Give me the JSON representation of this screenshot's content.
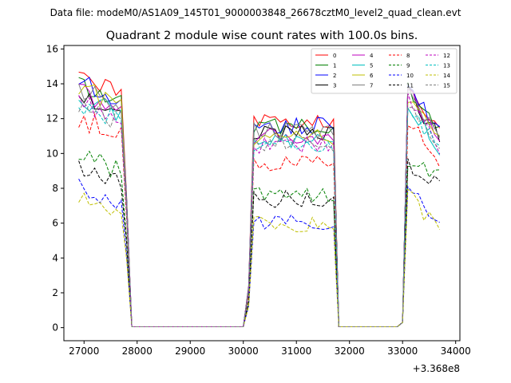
{
  "header": {
    "file_label": "Data file: modeM0/AS1A09_145T01_9000003848_26678cztM0_level2_quad_clean.evt"
  },
  "chart_data": {
    "type": "line",
    "title": "Quadrant 2 module wise count rates with 100.0s bins.",
    "xlabel": "",
    "ylabel": "",
    "x_offset_label": "+3.368e8",
    "xlim": [
      26620,
      34080
    ],
    "ylim": [
      -0.75,
      16.2
    ],
    "xticks": [
      27000,
      28000,
      29000,
      30000,
      31000,
      32000,
      33000,
      34000
    ],
    "xtick_labels": [
      "27000",
      "28000",
      "29000",
      "30000",
      "31000",
      "32000",
      "33000",
      "34000"
    ],
    "yticks": [
      0,
      2,
      4,
      6,
      8,
      10,
      12,
      14,
      16
    ],
    "ytick_labels": [
      "0",
      "2",
      "4",
      "6",
      "8",
      "10",
      "12",
      "14",
      "16"
    ],
    "grid": false,
    "legend_position": "top-right",
    "x": [
      26900,
      27000,
      27100,
      27200,
      27300,
      27400,
      27500,
      27600,
      27700,
      27800,
      27900,
      28000,
      28100,
      28200,
      28300,
      28400,
      28500,
      28600,
      28700,
      28800,
      28900,
      29000,
      29100,
      29200,
      29300,
      29400,
      29500,
      29600,
      29700,
      29800,
      29900,
      30000,
      30100,
      30200,
      30300,
      30400,
      30500,
      30600,
      30700,
      30800,
      30900,
      31000,
      31100,
      31200,
      31300,
      31400,
      31500,
      31600,
      31700,
      31800,
      31900,
      32000,
      32100,
      32200,
      32300,
      32400,
      32500,
      32600,
      32700,
      32800,
      32900,
      33000,
      33100,
      33200,
      33300,
      33400,
      33500,
      33600,
      33700
    ],
    "segments": [
      {
        "x_start": 26900,
        "x_end": 27800,
        "shape": "flat",
        "end": "drop"
      },
      {
        "x_start": 27900,
        "x_end": 30000,
        "shape": "zero"
      },
      {
        "x_start": 30100,
        "x_end": 31700,
        "shape": "flat",
        "start": "rise",
        "end": "drop"
      },
      {
        "x_start": 31800,
        "x_end": 32900,
        "shape": "zero"
      },
      {
        "x_start": 33000,
        "x_end": 33700,
        "shape": "decay",
        "start": "rise"
      }
    ],
    "series": [
      {
        "name": "0",
        "color": "#ff0000",
        "dashed": false,
        "levels": [
          13.8,
          11.9,
          13.9,
          11.6
        ]
      },
      {
        "name": "1",
        "color": "#008000",
        "dashed": false,
        "levels": [
          13.4,
          11.5,
          13.7,
          11.2
        ]
      },
      {
        "name": "2",
        "color": "#0000ff",
        "dashed": false,
        "levels": [
          13.6,
          11.6,
          14.0,
          11.1
        ]
      },
      {
        "name": "3",
        "color": "#000000",
        "dashed": false,
        "levels": [
          12.9,
          11.1,
          13.6,
          10.8
        ]
      },
      {
        "name": "4",
        "color": "#bf00bf",
        "dashed": false,
        "levels": [
          13.0,
          11.0,
          13.5,
          10.7
        ]
      },
      {
        "name": "5",
        "color": "#00bfbf",
        "dashed": false,
        "levels": [
          12.6,
          10.6,
          12.9,
          10.2
        ]
      },
      {
        "name": "6",
        "color": "#bfbf00",
        "dashed": false,
        "levels": [
          13.2,
          10.9,
          13.3,
          10.9
        ]
      },
      {
        "name": "7",
        "color": "#808080",
        "dashed": false,
        "levels": [
          13.3,
          11.3,
          13.4,
          11.0
        ]
      },
      {
        "name": "8",
        "color": "#ff0000",
        "dashed": true,
        "levels": [
          11.5,
          9.4,
          12.0,
          9.5
        ]
      },
      {
        "name": "9",
        "color": "#008000",
        "dashed": true,
        "levels": [
          9.4,
          7.7,
          9.6,
          8.6
        ]
      },
      {
        "name": "10",
        "color": "#0000ff",
        "dashed": true,
        "levels": [
          7.6,
          6.1,
          8.3,
          6.0
        ]
      },
      {
        "name": "11",
        "color": "#000000",
        "dashed": true,
        "levels": [
          8.9,
          7.4,
          9.3,
          8.0
        ]
      },
      {
        "name": "12",
        "color": "#bf00bf",
        "dashed": true,
        "levels": [
          12.4,
          10.4,
          13.2,
          10.3
        ]
      },
      {
        "name": "13",
        "color": "#00bfbf",
        "dashed": true,
        "levels": [
          12.3,
          10.5,
          12.8,
          10.1
        ]
      },
      {
        "name": "14",
        "color": "#bfbf00",
        "dashed": true,
        "levels": [
          7.2,
          6.0,
          7.6,
          5.7
        ]
      },
      {
        "name": "15",
        "color": "#808080",
        "dashed": true,
        "levels": [
          12.2,
          10.6,
          12.6,
          10.4
        ]
      }
    ]
  }
}
